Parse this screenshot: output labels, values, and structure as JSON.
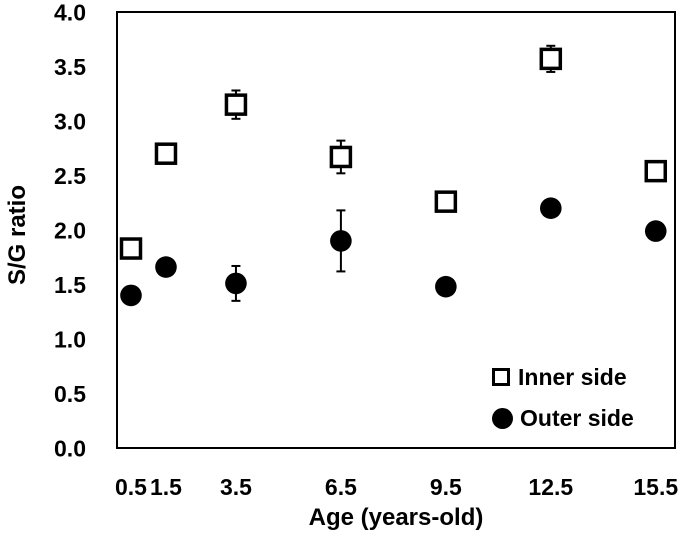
{
  "chart_data": {
    "type": "scatter",
    "title": "",
    "xlabel": "Age (years-old)",
    "ylabel": "S/G ratio",
    "xlim": [
      0.1,
      16.05
    ],
    "ylim": [
      0.0,
      4.0
    ],
    "grid": false,
    "legend_position": "inside-bottom-right",
    "x_ticks": [
      0.5,
      1.5,
      3.5,
      6.5,
      9.5,
      12.5,
      15.5
    ],
    "x_tick_labels": [
      "0.5",
      "1.5",
      "3.5",
      "6.5",
      "9.5",
      "12.5",
      "15.5"
    ],
    "y_ticks": [
      0.0,
      0.5,
      1.0,
      1.5,
      2.0,
      2.5,
      3.0,
      3.5,
      4.0
    ],
    "y_tick_labels": [
      "0.0",
      "0.5",
      "1.0",
      "1.5",
      "2.0",
      "2.5",
      "3.0",
      "3.5",
      "4.0"
    ],
    "series": [
      {
        "name": "Inner side",
        "marker": "open-square",
        "x": [
          0.5,
          1.5,
          3.5,
          6.5,
          9.5,
          12.5,
          15.5
        ],
        "y": [
          1.83,
          2.7,
          3.15,
          2.67,
          2.26,
          3.57,
          2.54
        ],
        "yerr": [
          0.04,
          0.03,
          0.13,
          0.15,
          0.05,
          0.12,
          0.05
        ]
      },
      {
        "name": "Outer side",
        "marker": "filled-circle",
        "x": [
          0.5,
          1.5,
          3.5,
          6.5,
          9.5,
          12.5,
          15.5
        ],
        "y": [
          1.4,
          1.66,
          1.51,
          1.9,
          1.48,
          2.2,
          1.99
        ],
        "yerr": [
          0.02,
          0.02,
          0.16,
          0.28,
          0.02,
          0.03,
          0.03
        ]
      }
    ],
    "colors": {
      "marker": "#000000",
      "background": "#ffffff",
      "frame": "#000000"
    }
  }
}
